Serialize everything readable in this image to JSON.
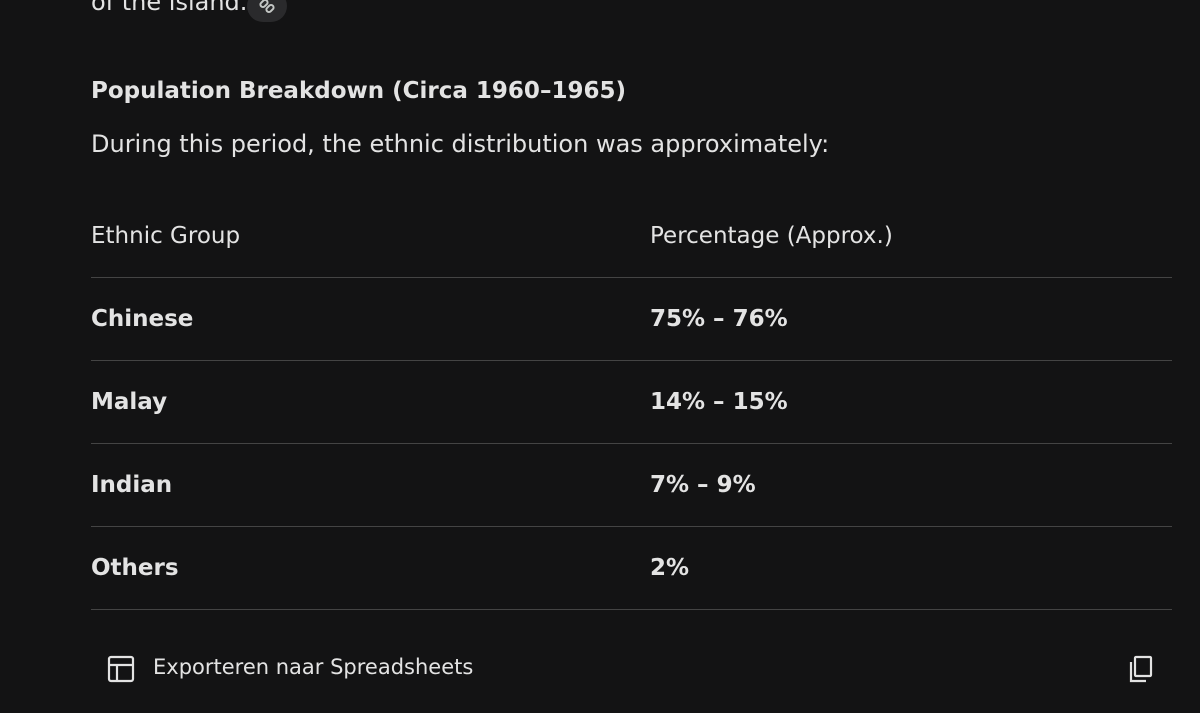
{
  "intro": "of the island.",
  "heading": "Population Breakdown (Circa 1960–1965)",
  "paragraph": "During this period, the ethnic distribution was approximately:",
  "table": {
    "header": [
      "Ethnic Group",
      "Percentage (Approx.)"
    ],
    "rows": [
      [
        "Chinese",
        "75% – 76%"
      ],
      [
        "Malay",
        "14% – 15%"
      ],
      [
        "Indian",
        "7% – 9%"
      ],
      [
        "Others",
        "2%"
      ]
    ]
  },
  "export": "Exporteren naar Spreadsheets"
}
